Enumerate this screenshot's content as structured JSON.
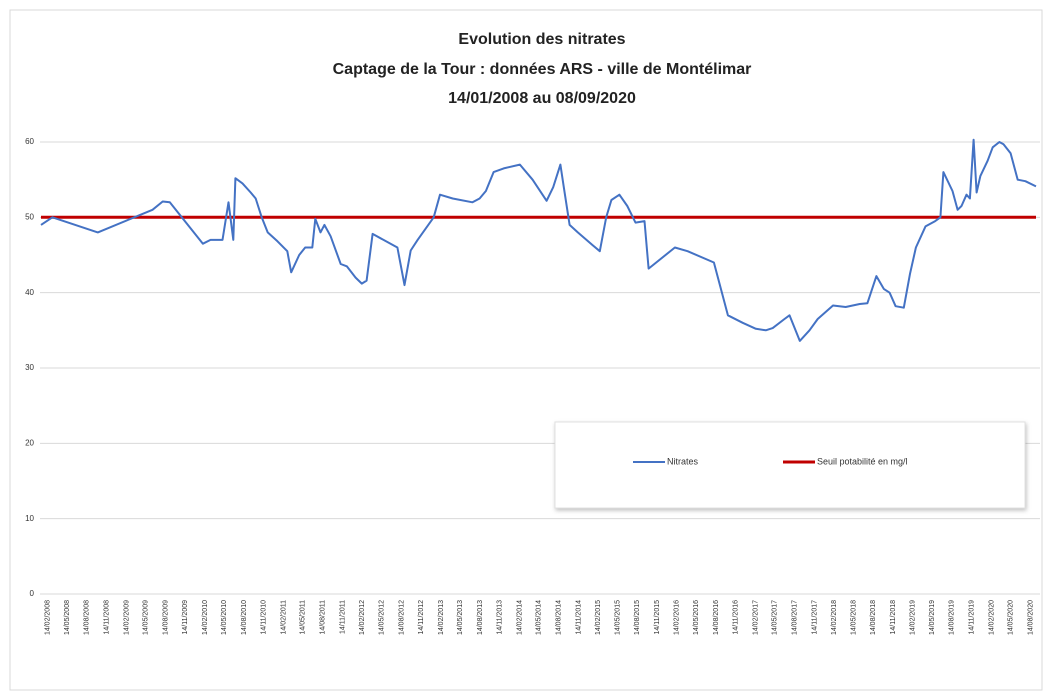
{
  "chart_data": {
    "type": "line",
    "title": "Evolution des nitrates",
    "subtitle": [
      "Captage de la Tour : données ARS - ville de Montélimar",
      "14/01/2008 au 08/09/2020"
    ],
    "x": [
      "14/01/2008",
      "07/03/2008",
      "04/10/2008",
      "15/06/2009",
      "01/08/2009",
      "03/09/2009",
      "04/02/2010",
      "11/03/2010",
      "06/05/2010",
      "03/06/2010",
      "25/06/2010",
      "05/07/2010",
      "07/08/2010",
      "14/09/2010",
      "07/10/2010",
      "04/11/2010",
      "02/12/2010",
      "17/01/2011",
      "03/03/2011",
      "21/03/2011",
      "27/04/2011",
      "25/05/2011",
      "27/06/2011",
      "11/07/2011",
      "04/08/2011",
      "22/08/2011",
      "20/09/2011",
      "06/11/2011",
      "04/12/2011",
      "14/01/2012",
      "12/02/2012",
      "05/03/2012",
      "02/04/2012",
      "26/07/2012",
      "28/08/2012",
      "26/09/2012",
      "28/10/2012",
      "11/01/2013",
      "09/02/2013",
      "09/04/2013",
      "10/07/2013",
      "12/08/2013",
      "10/09/2013",
      "16/10/2013",
      "02/12/2013",
      "15/02/2014",
      "15/04/2014",
      "19/06/2014",
      "20/07/2014",
      "22/08/2014",
      "07/09/2014",
      "04/10/2014",
      "11/11/2014",
      "19/01/2015",
      "21/02/2015",
      "23/03/2015",
      "16/04/2015",
      "23/05/2015",
      "29/06/2015",
      "06/08/2015",
      "17/09/2015",
      "06/10/2015",
      "05/02/2016",
      "04/04/2016",
      "04/08/2016",
      "08/10/2016",
      "16/12/2016",
      "15/02/2017",
      "02/04/2017",
      "04/05/2017",
      "28/06/2017",
      "21/07/2017",
      "07/09/2017",
      "22/10/2017",
      "29/11/2017",
      "08/02/2018",
      "08/04/2018",
      "12/06/2018",
      "18/07/2018",
      "29/08/2018",
      "02/10/2018",
      "29/10/2018",
      "26/11/2018",
      "03/01/2019",
      "01/02/2019",
      "28/02/2019",
      "14/04/2019",
      "29/05/2019",
      "22/06/2019",
      "06/07/2019",
      "17/08/2019",
      "10/09/2019",
      "28/09/2019",
      "21/10/2019",
      "06/11/2019",
      "23/11/2019",
      "07/12/2019",
      "25/12/2019",
      "27/01/2020",
      "20/02/2020",
      "22/03/2020",
      "10/04/2020",
      "13/05/2020",
      "15/06/2020",
      "21/07/2020",
      "08/09/2020"
    ],
    "series": [
      {
        "name": "Nitrates",
        "color": "#4472c4",
        "values": [
          49.0,
          50.0,
          48.0,
          51.0,
          52.1,
          52.0,
          46.5,
          47.0,
          47.0,
          52.0,
          47.0,
          55.2,
          54.5,
          53.3,
          52.5,
          50.0,
          48.0,
          46.8,
          45.5,
          42.7,
          45.0,
          46.0,
          46.0,
          49.8,
          48.0,
          49.0,
          47.5,
          43.8,
          43.5,
          42.0,
          41.2,
          41.6,
          47.8,
          46.0,
          41.0,
          45.6,
          47.0,
          50.0,
          53.0,
          52.5,
          52.0,
          52.5,
          53.5,
          56.0,
          56.5,
          57.0,
          55.0,
          52.2,
          54.0,
          57.0,
          54.0,
          49.0,
          48.0,
          46.3,
          45.5,
          50.0,
          52.3,
          53.0,
          51.5,
          49.3,
          49.5,
          43.2,
          46.0,
          45.5,
          44.0,
          37.0,
          36.0,
          35.2,
          35.0,
          35.3,
          36.5,
          37.0,
          33.6,
          35.0,
          36.5,
          38.3,
          38.1,
          38.5,
          38.6,
          42.2,
          40.5,
          40.0,
          38.2,
          38.0,
          42.5,
          46.0,
          48.8,
          49.5,
          50.0,
          56.0,
          53.5,
          51.0,
          51.5,
          53.0,
          52.5,
          60.3,
          53.3,
          55.5,
          57.5,
          59.3,
          60.0,
          59.7,
          58.5,
          55.0,
          54.8,
          54.1
        ]
      },
      {
        "name": "Seuil potabilité en mg/l",
        "color": "#c00000",
        "x": [
          "14/01/2008",
          "08/09/2020"
        ],
        "values": [
          50,
          50
        ]
      }
    ],
    "xlim": [
      "14/01/2008",
      "08/09/2020"
    ],
    "xticks": [
      "14/02/2008",
      "14/05/2008",
      "14/08/2008",
      "14/11/2008",
      "14/02/2009",
      "14/05/2009",
      "14/08/2009",
      "14/11/2009",
      "14/02/2010",
      "14/05/2010",
      "14/08/2010",
      "14/11/2010",
      "14/02/2011",
      "14/05/2011",
      "14/08/2011",
      "14/11/2011",
      "14/02/2012",
      "14/05/2012",
      "14/08/2012",
      "14/11/2012",
      "14/02/2013",
      "14/05/2013",
      "14/08/2013",
      "14/11/2013",
      "14/02/2014",
      "14/05/2014",
      "14/08/2014",
      "14/11/2014",
      "14/02/2015",
      "14/05/2015",
      "14/08/2015",
      "14/11/2015",
      "14/02/2016",
      "14/05/2016",
      "14/08/2016",
      "14/11/2016",
      "14/02/2017",
      "14/05/2017",
      "14/08/2017",
      "14/11/2017",
      "14/02/2018",
      "14/05/2018",
      "14/08/2018",
      "14/11/2018",
      "14/02/2019",
      "14/05/2019",
      "14/08/2019",
      "14/11/2019",
      "14/02/2020",
      "14/05/2020",
      "14/08/2020"
    ],
    "ylim": [
      0,
      60
    ],
    "yticks": [
      0,
      10,
      20,
      30,
      40,
      50,
      60
    ],
    "grid": true
  }
}
